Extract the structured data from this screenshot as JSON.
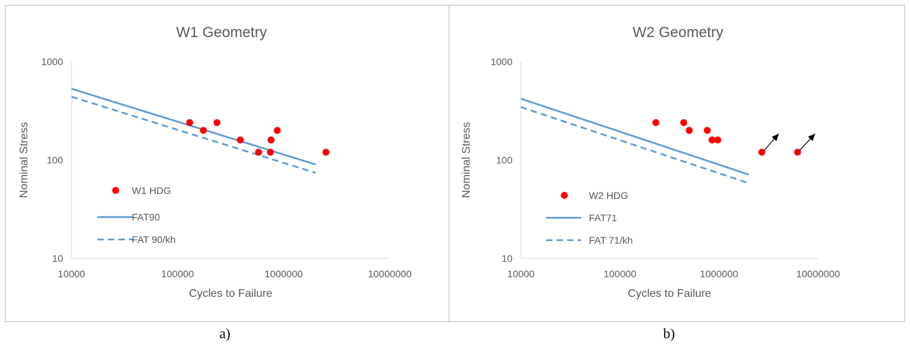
{
  "captions": [
    "a)",
    "b)"
  ],
  "chart_data": [
    {
      "type": "scatter",
      "title": "W1 Geometry",
      "xlabel": "Cycles to Failure",
      "ylabel": "Nominal Stress",
      "xscale": "log",
      "yscale": "log",
      "xlim": [
        10000,
        10000000
      ],
      "ylim": [
        10,
        1000
      ],
      "xticks": [
        "10000",
        "100000",
        "1000000",
        "10000000"
      ],
      "yticks": [
        "1000",
        "100",
        "10"
      ],
      "grid": false,
      "legend_position": "bottom-left",
      "series": [
        {
          "name": "W1 HDG",
          "kind": "points",
          "color": "#ff0000",
          "points": [
            [
              130000,
              240
            ],
            [
              175000,
              200
            ],
            [
              235000,
              240
            ],
            [
              390000,
              160
            ],
            [
              580000,
              120
            ],
            [
              750000,
              120
            ],
            [
              760000,
              160
            ],
            [
              870000,
              200
            ],
            [
              2500000,
              120
            ]
          ]
        },
        {
          "name": "FAT90",
          "kind": "line",
          "dash": "solid",
          "color": "#5b9bd5",
          "points": [
            [
              10000,
              530
            ],
            [
              2000000,
              90
            ]
          ]
        },
        {
          "name": "FAT 90/kh",
          "kind": "line",
          "dash": "dashed",
          "color": "#5b9bd5",
          "points": [
            [
              10000,
              440
            ],
            [
              2000000,
              74
            ]
          ]
        }
      ],
      "arrows": []
    },
    {
      "type": "scatter",
      "title": "W2 Geometry",
      "xlabel": "Cycles to Failure",
      "ylabel": "Nominal Stress",
      "xscale": "log",
      "yscale": "log",
      "xlim": [
        10000,
        10000000
      ],
      "ylim": [
        10,
        1000
      ],
      "xticks": [
        "10000",
        "100000",
        "1000000",
        "10000000"
      ],
      "yticks": [
        "1000",
        "100",
        "10"
      ],
      "grid": false,
      "legend_position": "bottom-left",
      "series": [
        {
          "name": "W2 HDG",
          "kind": "points",
          "color": "#ff0000",
          "points": [
            [
              230000,
              240
            ],
            [
              440000,
              240
            ],
            [
              500000,
              200
            ],
            [
              760000,
              200
            ],
            [
              850000,
              160
            ],
            [
              970000,
              160
            ],
            [
              2700000,
              120
            ],
            [
              6200000,
              120
            ]
          ]
        },
        {
          "name": "FAT71",
          "kind": "line",
          "dash": "solid",
          "color": "#5b9bd5",
          "points": [
            [
              10000,
              420
            ],
            [
              2000000,
              71
            ]
          ]
        },
        {
          "name": "FAT 71/kh",
          "kind": "line",
          "dash": "dashed",
          "color": "#5b9bd5",
          "points": [
            [
              10000,
              345
            ],
            [
              2000000,
              58
            ]
          ]
        }
      ],
      "arrows": [
        {
          "from": [
            2850000,
            125
          ],
          "to": [
            4000000,
            185
          ],
          "color": "#000000"
        },
        {
          "from": [
            6500000,
            125
          ],
          "to": [
            9300000,
            185
          ],
          "color": "#000000"
        }
      ]
    }
  ]
}
